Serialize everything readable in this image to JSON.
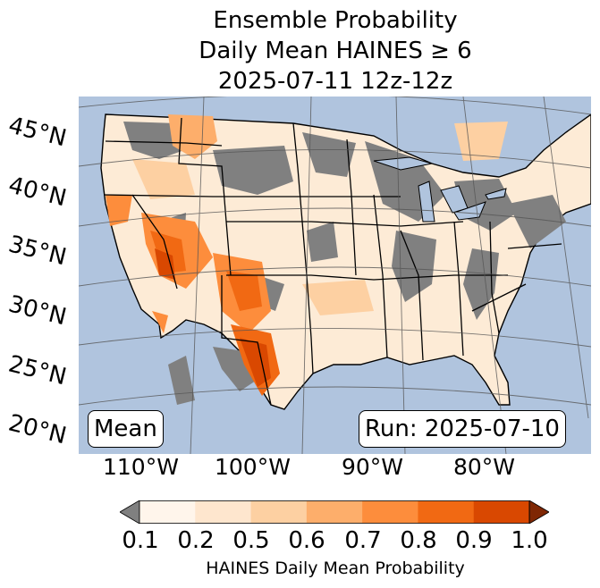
{
  "title": {
    "line1": "Ensemble Probability",
    "line2": "Daily Mean HAINES ≥ 6",
    "line3": "2025-07-11 12z-12z"
  },
  "map": {
    "stat_label": "Mean",
    "run_label": "Run: 2025-07-10",
    "lat_labels": [
      "45°N",
      "40°N",
      "35°N",
      "30°N",
      "25°N",
      "20°N"
    ],
    "lon_labels": [
      "110°W",
      "100°W",
      "90°W",
      "80°W"
    ],
    "colors": {
      "ocean": "#b0c4de",
      "below_min": "#808080",
      "outline": "#000000"
    }
  },
  "colorbar": {
    "label": "HAINES Daily Mean Probability",
    "ticks": [
      "0.1",
      "0.2",
      "0.5",
      "0.6",
      "0.7",
      "0.8",
      "0.9",
      "1.0"
    ],
    "colors": [
      "#fff5eb",
      "#fee6ce",
      "#fdd0a2",
      "#fdae6b",
      "#fd8d3c",
      "#f16913",
      "#d94801",
      "#a63603"
    ],
    "under_color": "#808080",
    "over_color": "#7f2704"
  }
}
